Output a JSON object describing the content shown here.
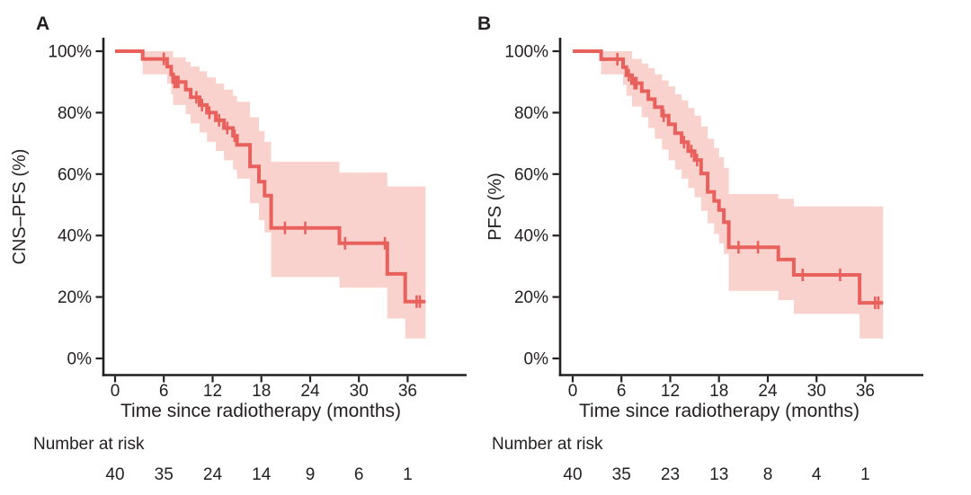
{
  "colors": {
    "line": "#e8615c",
    "band": "#f9d2ce",
    "axis": "#231f20",
    "text": "#231f20",
    "background": "#ffffff"
  },
  "chart_data": [
    {
      "type": "line",
      "subtype": "kaplan_meier_step",
      "panel_label": "A",
      "title": "",
      "xlabel": "Time since radiotherapy (months)",
      "ylabel": "CNS–PFS (%)",
      "xlim": [
        0,
        38.2
      ],
      "ylim": [
        0,
        100
      ],
      "grid": false,
      "legend": "none",
      "x_ticks": [
        0,
        6,
        12,
        18,
        24,
        30,
        36
      ],
      "y_ticks": [
        0,
        20,
        40,
        60,
        80,
        100
      ],
      "y_tick_labels": [
        "0%",
        "20%",
        "40%",
        "60%",
        "80%",
        "100%"
      ],
      "end_time": 38.2,
      "survival_steps": [
        [
          0,
          100
        ],
        [
          3.4,
          97.5
        ],
        [
          6.4,
          95
        ],
        [
          6.9,
          92.5
        ],
        [
          7.15,
          90
        ],
        [
          8.7,
          87.5
        ],
        [
          9.3,
          85
        ],
        [
          10.4,
          82.5
        ],
        [
          11.3,
          80
        ],
        [
          12.4,
          77.5
        ],
        [
          13.4,
          75
        ],
        [
          14.5,
          72.5
        ],
        [
          15.0,
          69.5
        ],
        [
          16.6,
          62.5
        ],
        [
          17.7,
          57.5
        ],
        [
          18.4,
          53
        ],
        [
          19.2,
          42.5
        ],
        [
          27.6,
          37.5
        ],
        [
          33.5,
          27.5
        ],
        [
          35.7,
          18.5
        ]
      ],
      "censor_marks": [
        [
          6.0,
          97.5
        ],
        [
          7.3,
          90
        ],
        [
          7.55,
          90
        ],
        [
          7.8,
          90
        ],
        [
          10.0,
          85
        ],
        [
          10.7,
          82.5
        ],
        [
          11.6,
          80
        ],
        [
          12.8,
          77.5
        ],
        [
          13.8,
          75
        ],
        [
          14.7,
          72.5
        ],
        [
          20.9,
          42.5
        ],
        [
          23.4,
          42.5
        ],
        [
          28.3,
          37.5
        ],
        [
          33.2,
          37.5
        ],
        [
          37.1,
          18.5
        ],
        [
          37.5,
          18.5
        ]
      ],
      "confidence_band": [
        [
          3.4,
          92.5,
          100
        ],
        [
          6.4,
          89.5,
          100
        ],
        [
          6.9,
          86,
          100
        ],
        [
          7.15,
          82.5,
          98
        ],
        [
          8.7,
          79.5,
          96.5
        ],
        [
          9.3,
          76.5,
          95
        ],
        [
          10.4,
          73.5,
          93.5
        ],
        [
          11.3,
          70.5,
          91.5
        ],
        [
          12.4,
          67.5,
          89.5
        ],
        [
          13.4,
          64.5,
          87.5
        ],
        [
          14.5,
          61.5,
          85.5
        ],
        [
          15.0,
          58.5,
          83.5
        ],
        [
          16.6,
          50.5,
          78.5
        ],
        [
          17.7,
          45,
          74
        ],
        [
          18.4,
          41,
          70.5
        ],
        [
          19.2,
          26.5,
          64
        ],
        [
          27.6,
          23,
          60.5
        ],
        [
          33.5,
          13,
          56
        ],
        [
          35.7,
          6.5,
          56
        ]
      ],
      "number_at_risk": {
        "label": "Number at risk",
        "times": [
          0,
          6,
          12,
          18,
          24,
          30,
          36
        ],
        "counts": [
          40,
          35,
          24,
          14,
          9,
          6,
          1
        ]
      }
    },
    {
      "type": "line",
      "subtype": "kaplan_meier_step",
      "panel_label": "B",
      "title": "",
      "xlabel": "Time since radiotherapy (months)",
      "ylabel": "PFS (%)",
      "xlim": [
        0,
        38.2
      ],
      "ylim": [
        0,
        100
      ],
      "grid": false,
      "legend": "none",
      "x_ticks": [
        0,
        6,
        12,
        18,
        24,
        30,
        36
      ],
      "y_ticks": [
        0,
        20,
        40,
        60,
        80,
        100
      ],
      "y_tick_labels": [
        "0%",
        "20%",
        "40%",
        "60%",
        "80%",
        "100%"
      ],
      "end_time": 38.2,
      "survival_steps": [
        [
          0,
          100
        ],
        [
          3.5,
          97.4
        ],
        [
          6.2,
          94.8
        ],
        [
          6.6,
          92.2
        ],
        [
          7.3,
          89.6
        ],
        [
          8.5,
          87
        ],
        [
          9.3,
          84.4
        ],
        [
          10.1,
          81.8
        ],
        [
          11.0,
          79
        ],
        [
          11.8,
          76.2
        ],
        [
          12.6,
          73.3
        ],
        [
          13.4,
          70.4
        ],
        [
          14.2,
          67.5
        ],
        [
          15.0,
          64.6
        ],
        [
          15.8,
          60.2
        ],
        [
          16.6,
          54.2
        ],
        [
          17.4,
          51.3
        ],
        [
          18.0,
          48.3
        ],
        [
          18.6,
          44.4
        ],
        [
          19.2,
          36.2
        ],
        [
          25.3,
          32.2
        ],
        [
          27.2,
          27.2
        ],
        [
          35.3,
          18.1
        ]
      ],
      "censor_marks": [
        [
          5.5,
          97.4
        ],
        [
          6.9,
          92.2
        ],
        [
          7.6,
          89.6
        ],
        [
          7.85,
          89.6
        ],
        [
          11.2,
          79
        ],
        [
          13.7,
          70.4
        ],
        [
          14.6,
          67.5
        ],
        [
          15.3,
          64.6
        ],
        [
          20.4,
          36.2
        ],
        [
          22.8,
          36.2
        ],
        [
          28.3,
          27.2
        ],
        [
          32.9,
          27.2
        ],
        [
          37.2,
          18.1
        ],
        [
          37.6,
          18.1
        ]
      ],
      "confidence_band": [
        [
          3.5,
          92.5,
          100
        ],
        [
          6.2,
          89,
          100
        ],
        [
          6.6,
          85.5,
          100
        ],
        [
          7.3,
          82,
          97.5
        ],
        [
          8.5,
          78.5,
          96
        ],
        [
          9.3,
          75,
          94.5
        ],
        [
          10.1,
          71.5,
          92.5
        ],
        [
          11.0,
          68,
          90.5
        ],
        [
          11.8,
          64.5,
          88.5
        ],
        [
          12.6,
          61.5,
          86
        ],
        [
          13.4,
          58.5,
          84
        ],
        [
          14.2,
          55.5,
          81.5
        ],
        [
          15.0,
          52.5,
          79
        ],
        [
          15.8,
          48,
          75.5
        ],
        [
          16.6,
          44,
          71.5
        ],
        [
          17.4,
          40.5,
          68.5
        ],
        [
          18.0,
          37.5,
          65.5
        ],
        [
          18.6,
          34,
          62
        ],
        [
          19.2,
          22,
          53.5
        ],
        [
          25.3,
          19,
          52
        ],
        [
          27.2,
          14.5,
          49.5
        ],
        [
          35.3,
          6.5,
          49.5
        ]
      ],
      "number_at_risk": {
        "label": "Number at risk",
        "times": [
          0,
          6,
          12,
          18,
          24,
          30,
          36
        ],
        "counts": [
          40,
          35,
          23,
          13,
          8,
          4,
          1
        ]
      }
    }
  ]
}
